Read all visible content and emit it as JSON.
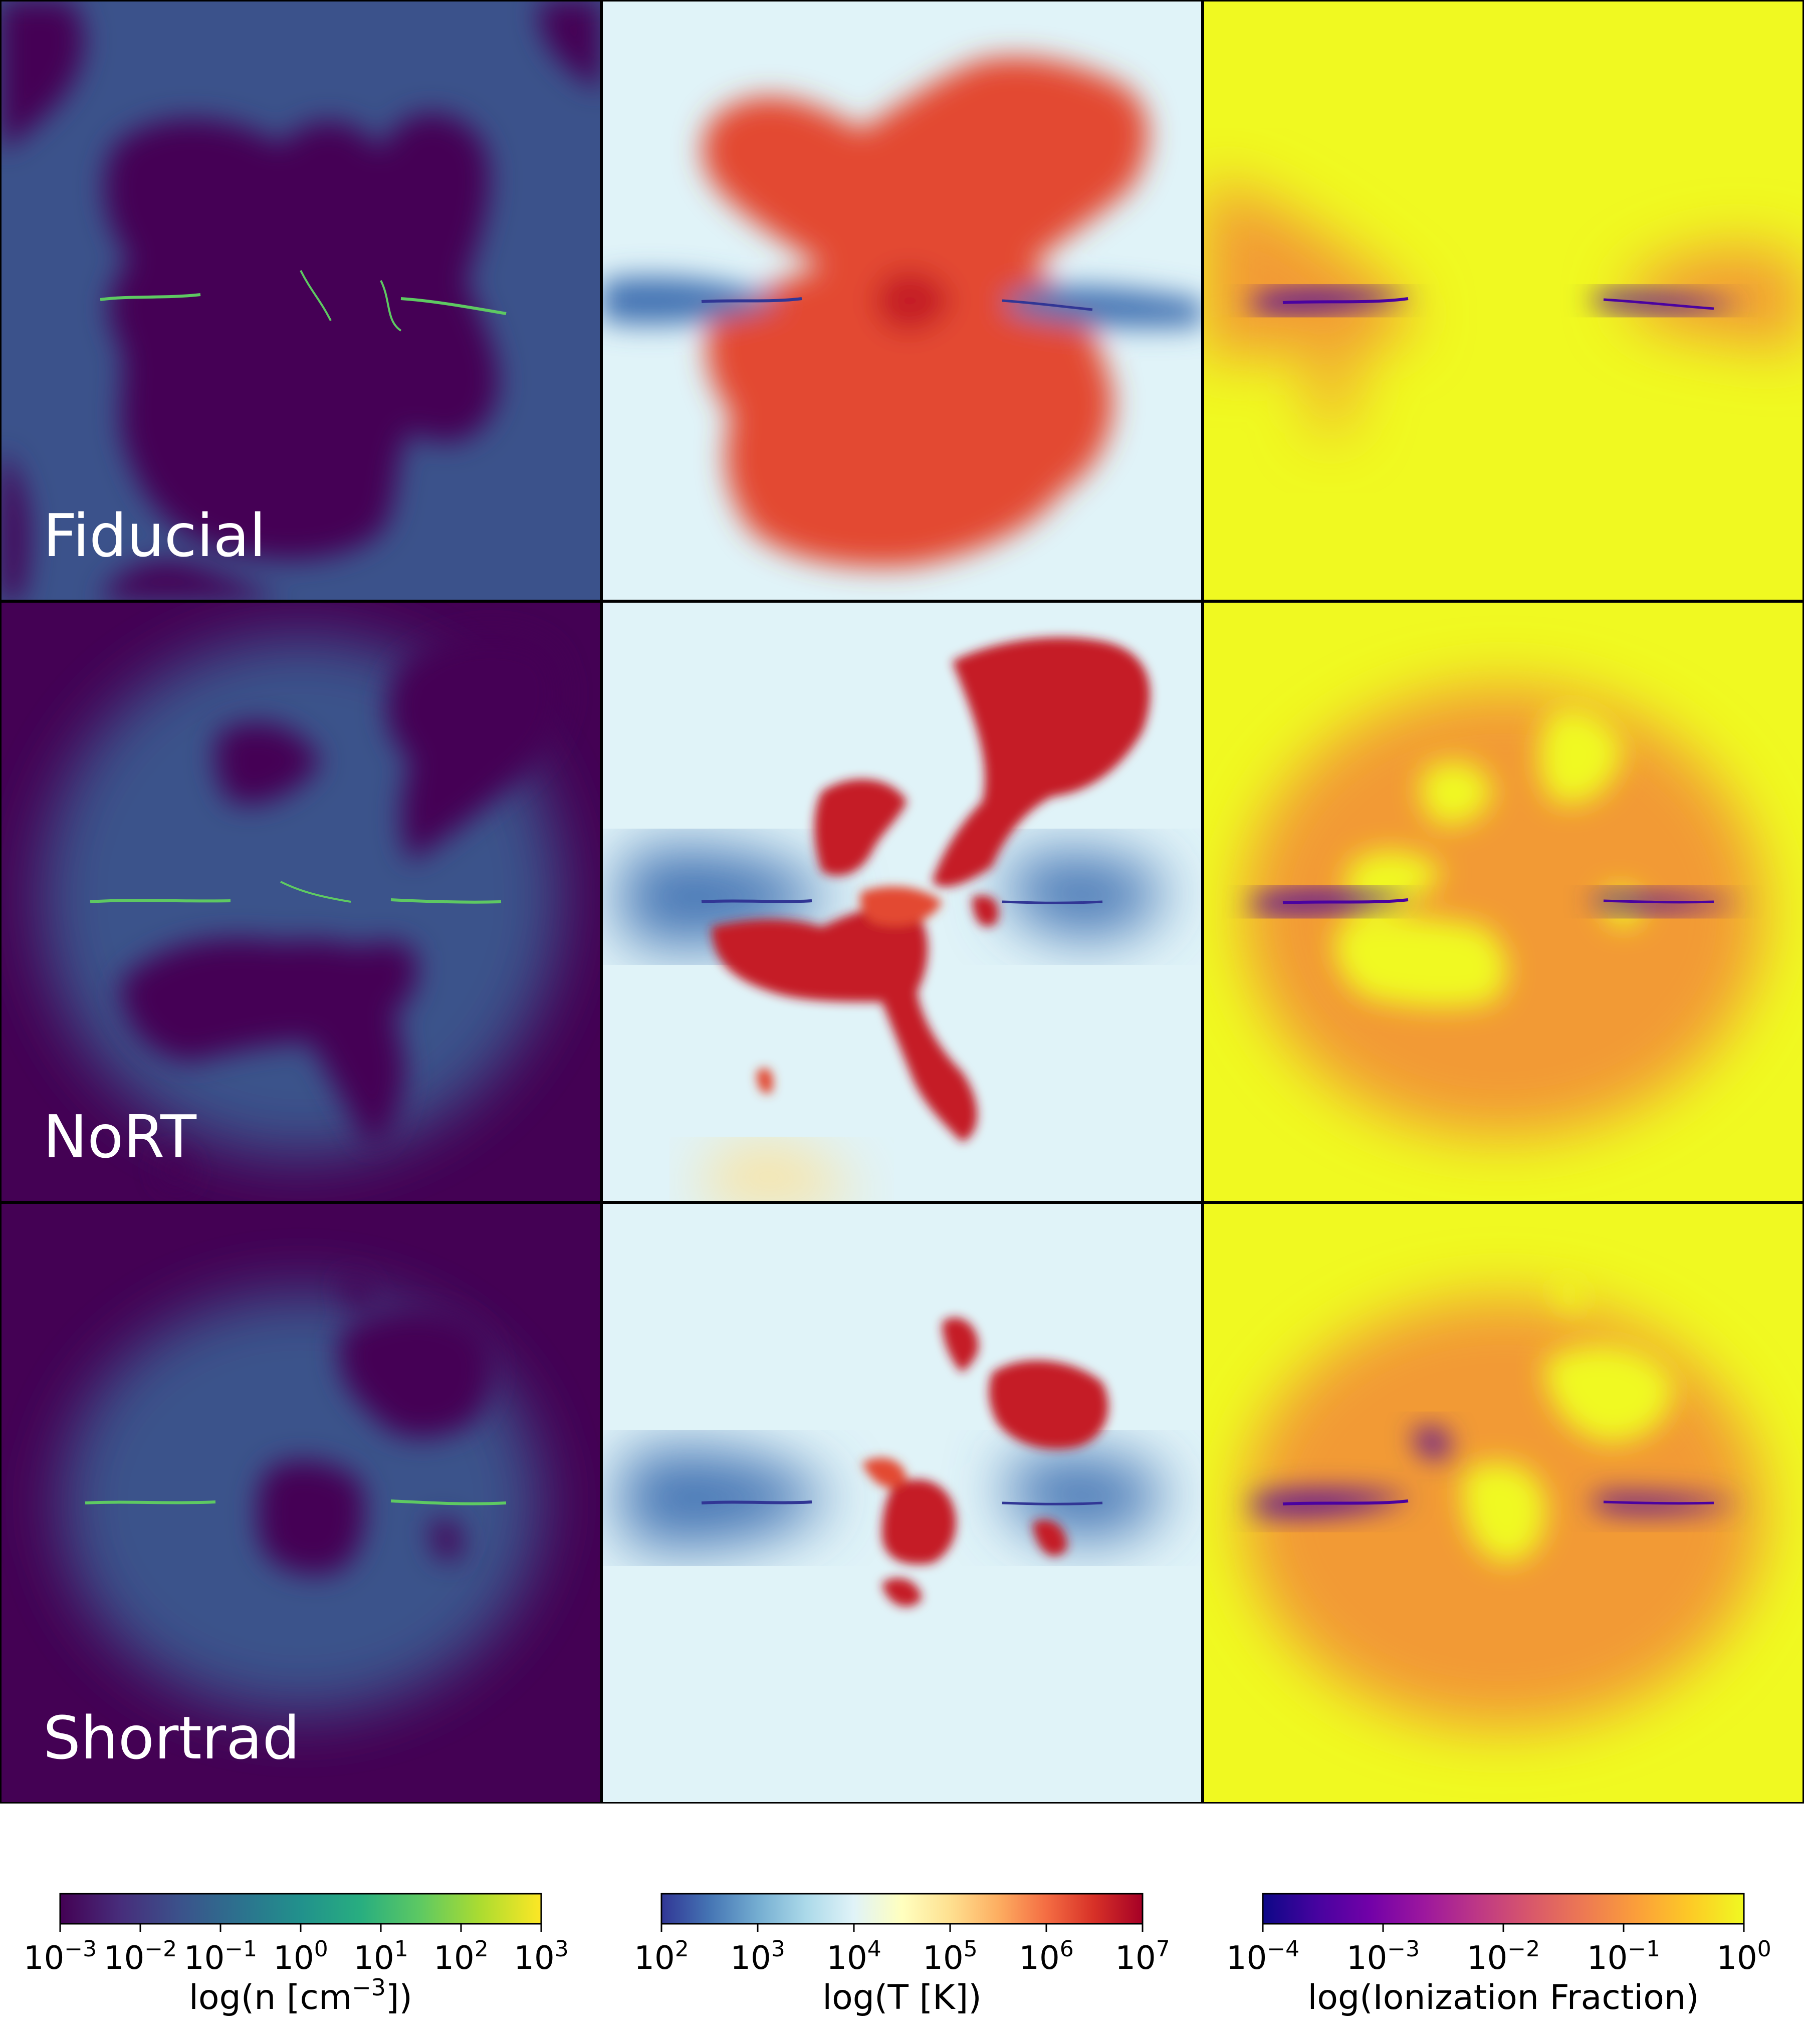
{
  "chart_data": {
    "type": "heatmap",
    "panel_grid": {
      "rows": 3,
      "columns": 3
    },
    "rows": [
      {
        "label": "Fiducial"
      },
      {
        "label": "NoRT"
      },
      {
        "label": "Shortrad"
      }
    ],
    "columns": [
      {
        "quantity": "density",
        "colormap": "viridis",
        "colorbar": {
          "label_prefix": "log(n [cm",
          "label_exp": "−3",
          "label_suffix": "])",
          "scale": "log",
          "range": [
            0.001,
            1000
          ],
          "ticks": [
            {
              "base": "10",
              "exp": "−3"
            },
            {
              "base": "10",
              "exp": "−2"
            },
            {
              "base": "10",
              "exp": "−1"
            },
            {
              "base": "10",
              "exp": "0"
            },
            {
              "base": "10",
              "exp": "1"
            },
            {
              "base": "10",
              "exp": "2"
            },
            {
              "base": "10",
              "exp": "3"
            }
          ]
        }
      },
      {
        "quantity": "temperature",
        "colormap": "RdYlBu_r",
        "colorbar": {
          "label_prefix": "log(T [K])",
          "label_exp": "",
          "label_suffix": "",
          "scale": "log",
          "range": [
            100,
            10000000
          ],
          "ticks": [
            {
              "base": "10",
              "exp": "2"
            },
            {
              "base": "10",
              "exp": "3"
            },
            {
              "base": "10",
              "exp": "4"
            },
            {
              "base": "10",
              "exp": "5"
            },
            {
              "base": "10",
              "exp": "6"
            },
            {
              "base": "10",
              "exp": "7"
            }
          ]
        }
      },
      {
        "quantity": "ionization_fraction",
        "colormap": "plasma",
        "colorbar": {
          "label_prefix": "log(Ionization Fraction)",
          "label_exp": "",
          "label_suffix": "",
          "scale": "log",
          "range": [
            0.0001,
            1
          ],
          "ticks": [
            {
              "base": "10",
              "exp": "−4"
            },
            {
              "base": "10",
              "exp": "−3"
            },
            {
              "base": "10",
              "exp": "−2"
            },
            {
              "base": "10",
              "exp": "−1"
            },
            {
              "base": "10",
              "exp": "0"
            }
          ]
        }
      }
    ],
    "colormaps": {
      "viridis": [
        "#440154",
        "#472d7b",
        "#3b528b",
        "#2c728e",
        "#21918c",
        "#28ae80",
        "#5ec962",
        "#addc30",
        "#fde725"
      ],
      "RdYlBu_r": [
        "#313695",
        "#4575b4",
        "#74add1",
        "#abd9e9",
        "#e0f3f8",
        "#ffffbf",
        "#fee090",
        "#fdae61",
        "#f46d43",
        "#d73027",
        "#a50026"
      ],
      "plasma": [
        "#0d0887",
        "#46039f",
        "#7201a8",
        "#9c179e",
        "#bd3786",
        "#d8576b",
        "#ed7953",
        "#fb9f3a",
        "#fdca26",
        "#f0f921"
      ]
    },
    "panel_colors": {
      "density_background": "#440154",
      "density_halo": "#3b528b",
      "density_filament": "#5ec962",
      "temperature_background": "#e0f3f8",
      "temperature_cool": "#4575b4",
      "temperature_hot": "#e34a33",
      "temperature_very_hot": "#c51b25",
      "ionization_background": "#f0f921",
      "ionization_mid": "#f29a34",
      "ionization_low": "#4a02a0"
    }
  }
}
